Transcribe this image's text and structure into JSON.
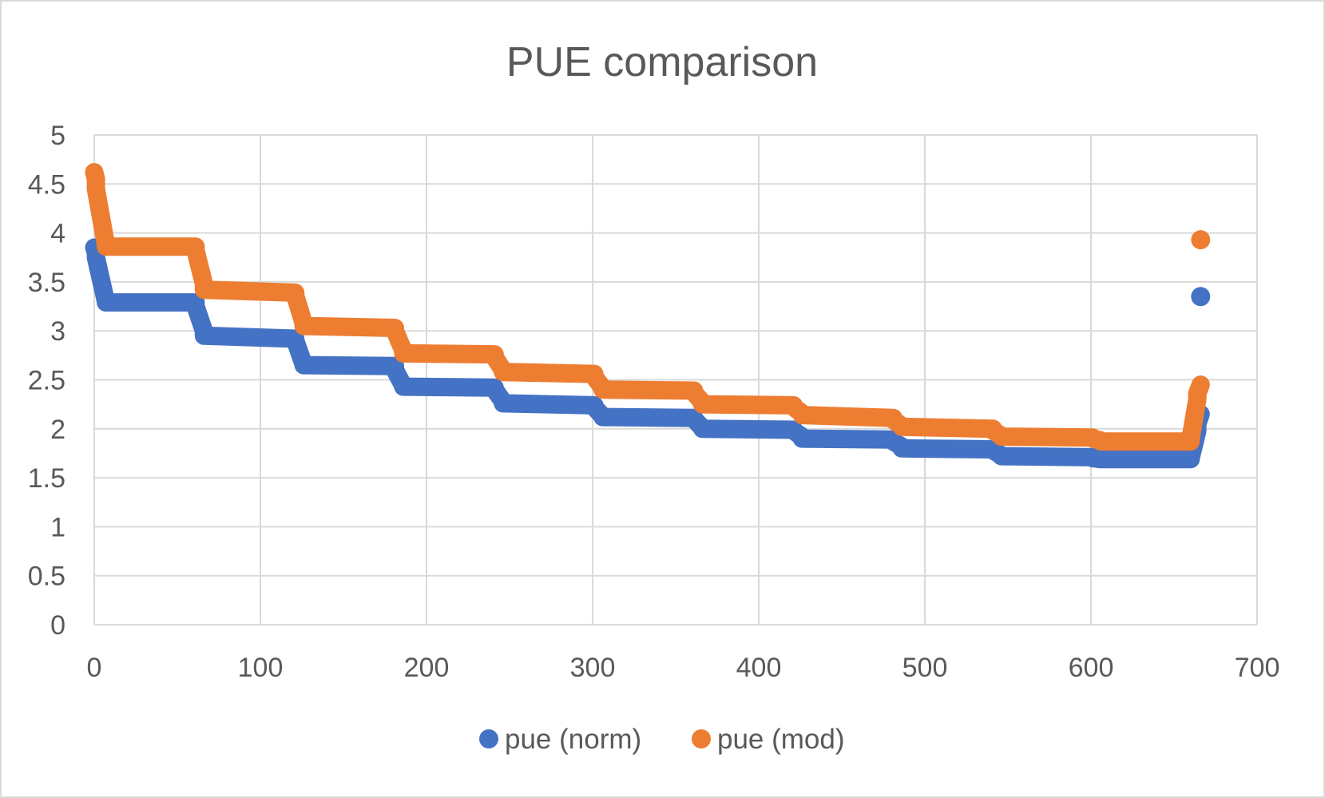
{
  "chart_data": {
    "type": "scatter",
    "title": "PUE comparison",
    "xlabel": "",
    "ylabel": "",
    "xlim": [
      0,
      700
    ],
    "ylim": [
      0,
      5
    ],
    "x_ticks": [
      "0",
      "100",
      "200",
      "300",
      "400",
      "500",
      "600",
      "700"
    ],
    "y_ticks": [
      "0",
      "0.5",
      "1",
      "1.5",
      "2",
      "2.5",
      "3",
      "3.5",
      "4",
      "4.5",
      "5"
    ],
    "grid": true,
    "legend_position": "bottom",
    "series": [
      {
        "name": "pue (norm)",
        "color": "#4472c4",
        "segments": [
          {
            "x_start": 0,
            "x_end": 1,
            "start": 3.85,
            "end": 3.8
          },
          {
            "x_start": 1,
            "x_end": 7,
            "start": 3.75,
            "end": 3.3
          },
          {
            "x_start": 7,
            "x_end": 61,
            "start": 3.29,
            "end": 3.29
          },
          {
            "x_start": 61,
            "x_end": 66,
            "start": 3.25,
            "end": 3.0
          },
          {
            "x_start": 66,
            "x_end": 121,
            "start": 2.95,
            "end": 2.92
          },
          {
            "x_start": 121,
            "x_end": 126,
            "start": 2.9,
            "end": 2.66
          },
          {
            "x_start": 126,
            "x_end": 181,
            "start": 2.65,
            "end": 2.64
          },
          {
            "x_start": 181,
            "x_end": 186,
            "start": 2.6,
            "end": 2.44
          },
          {
            "x_start": 186,
            "x_end": 241,
            "start": 2.43,
            "end": 2.42
          },
          {
            "x_start": 241,
            "x_end": 246,
            "start": 2.4,
            "end": 2.28
          },
          {
            "x_start": 246,
            "x_end": 301,
            "start": 2.26,
            "end": 2.24
          },
          {
            "x_start": 301,
            "x_end": 306,
            "start": 2.22,
            "end": 2.13
          },
          {
            "x_start": 306,
            "x_end": 361,
            "start": 2.12,
            "end": 2.11
          },
          {
            "x_start": 361,
            "x_end": 366,
            "start": 2.1,
            "end": 2.01
          },
          {
            "x_start": 366,
            "x_end": 421,
            "start": 2.0,
            "end": 1.99
          },
          {
            "x_start": 421,
            "x_end": 426,
            "start": 1.98,
            "end": 1.92
          },
          {
            "x_start": 426,
            "x_end": 481,
            "start": 1.9,
            "end": 1.89
          },
          {
            "x_start": 481,
            "x_end": 486,
            "start": 1.87,
            "end": 1.82
          },
          {
            "x_start": 486,
            "x_end": 541,
            "start": 1.8,
            "end": 1.79
          },
          {
            "x_start": 541,
            "x_end": 546,
            "start": 1.78,
            "end": 1.73
          },
          {
            "x_start": 546,
            "x_end": 601,
            "start": 1.72,
            "end": 1.71
          },
          {
            "x_start": 601,
            "x_end": 606,
            "start": 1.7,
            "end": 1.69
          },
          {
            "x_start": 606,
            "x_end": 660,
            "start": 1.69,
            "end": 1.69
          },
          {
            "x_start": 660,
            "x_end": 664,
            "start": 1.7,
            "end": 1.98
          },
          {
            "x_start": 664,
            "x_end": 666,
            "start": 2.05,
            "end": 2.15
          }
        ],
        "outliers": [
          {
            "x": 666,
            "y": 3.35
          }
        ]
      },
      {
        "name": "pue (mod)",
        "color": "#ed7d31",
        "segments": [
          {
            "x_start": 0,
            "x_end": 1,
            "start": 4.62,
            "end": 4.55
          },
          {
            "x_start": 1,
            "x_end": 7,
            "start": 4.45,
            "end": 3.88
          },
          {
            "x_start": 7,
            "x_end": 61,
            "start": 3.86,
            "end": 3.86
          },
          {
            "x_start": 61,
            "x_end": 66,
            "start": 3.82,
            "end": 3.48
          },
          {
            "x_start": 66,
            "x_end": 121,
            "start": 3.42,
            "end": 3.39
          },
          {
            "x_start": 121,
            "x_end": 126,
            "start": 3.36,
            "end": 3.08
          },
          {
            "x_start": 126,
            "x_end": 181,
            "start": 3.05,
            "end": 3.03
          },
          {
            "x_start": 181,
            "x_end": 186,
            "start": 3.0,
            "end": 2.8
          },
          {
            "x_start": 186,
            "x_end": 241,
            "start": 2.77,
            "end": 2.76
          },
          {
            "x_start": 241,
            "x_end": 246,
            "start": 2.73,
            "end": 2.6
          },
          {
            "x_start": 246,
            "x_end": 301,
            "start": 2.58,
            "end": 2.56
          },
          {
            "x_start": 301,
            "x_end": 306,
            "start": 2.53,
            "end": 2.42
          },
          {
            "x_start": 306,
            "x_end": 361,
            "start": 2.4,
            "end": 2.39
          },
          {
            "x_start": 361,
            "x_end": 366,
            "start": 2.37,
            "end": 2.27
          },
          {
            "x_start": 366,
            "x_end": 421,
            "start": 2.25,
            "end": 2.24
          },
          {
            "x_start": 421,
            "x_end": 426,
            "start": 2.22,
            "end": 2.16
          },
          {
            "x_start": 426,
            "x_end": 481,
            "start": 2.14,
            "end": 2.11
          },
          {
            "x_start": 481,
            "x_end": 486,
            "start": 2.09,
            "end": 2.03
          },
          {
            "x_start": 486,
            "x_end": 541,
            "start": 2.02,
            "end": 2.0
          },
          {
            "x_start": 541,
            "x_end": 546,
            "start": 1.98,
            "end": 1.93
          },
          {
            "x_start": 546,
            "x_end": 601,
            "start": 1.92,
            "end": 1.91
          },
          {
            "x_start": 601,
            "x_end": 606,
            "start": 1.9,
            "end": 1.88
          },
          {
            "x_start": 606,
            "x_end": 660,
            "start": 1.87,
            "end": 1.87
          },
          {
            "x_start": 660,
            "x_end": 664,
            "start": 1.9,
            "end": 2.3
          },
          {
            "x_start": 664,
            "x_end": 666,
            "start": 2.36,
            "end": 2.45
          }
        ],
        "outliers": [
          {
            "x": 666,
            "y": 3.93
          }
        ]
      }
    ]
  }
}
